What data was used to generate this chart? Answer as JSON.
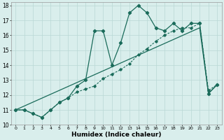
{
  "xlabel": "Humidex (Indice chaleur)",
  "xlim": [
    -0.5,
    23.5
  ],
  "ylim": [
    10,
    18.2
  ],
  "yticks": [
    10,
    11,
    12,
    13,
    14,
    15,
    16,
    17,
    18
  ],
  "xticks": [
    0,
    1,
    2,
    3,
    4,
    5,
    6,
    7,
    8,
    9,
    10,
    11,
    12,
    13,
    14,
    15,
    16,
    17,
    18,
    19,
    20,
    21,
    22,
    23
  ],
  "background_color": "#d9eeec",
  "grid_color": "#b8d8d4",
  "line_color": "#1a6b5a",
  "line1_x": [
    0,
    1,
    2,
    3,
    4,
    5,
    6,
    7,
    8,
    9,
    10,
    11,
    12,
    13,
    14,
    15,
    16,
    17,
    18,
    19,
    20,
    21,
    22,
    23
  ],
  "line1_y": [
    11.0,
    11.0,
    10.75,
    10.5,
    11.0,
    11.5,
    11.8,
    12.6,
    13.0,
    16.3,
    16.3,
    14.0,
    15.5,
    17.5,
    18.0,
    17.5,
    16.5,
    16.3,
    16.8,
    16.3,
    16.8,
    16.8,
    12.1,
    12.7
  ],
  "line2_x": [
    0,
    1,
    2,
    3,
    4,
    5,
    6,
    7,
    8,
    9,
    10,
    11,
    12,
    13,
    14,
    15,
    16,
    17,
    18,
    19,
    20,
    21,
    22,
    23
  ],
  "line2_y": [
    11.0,
    11.0,
    10.75,
    10.5,
    11.0,
    11.5,
    11.8,
    12.2,
    12.4,
    12.6,
    13.1,
    13.4,
    13.7,
    14.1,
    14.7,
    15.1,
    15.6,
    16.0,
    16.3,
    16.5,
    16.5,
    16.8,
    12.3,
    12.7
  ],
  "line3_x": [
    0,
    21,
    22,
    23
  ],
  "line3_y": [
    11.0,
    16.5,
    12.1,
    12.7
  ]
}
